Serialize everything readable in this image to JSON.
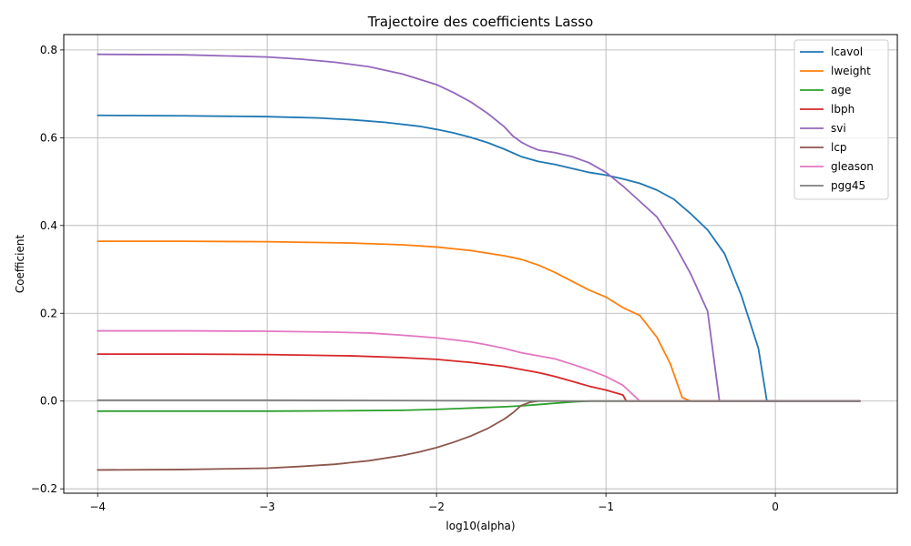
{
  "chart_data": {
    "type": "line",
    "title": "Trajectoire des coefficients Lasso",
    "xlabel": "log10(alpha)",
    "ylabel": "Coefficient",
    "xlim": [
      -4.2,
      0.72
    ],
    "ylim": [
      -0.21,
      0.835
    ],
    "xticks": [
      -4,
      -3,
      -2,
      -1,
      0
    ],
    "xtick_labels": [
      "−4",
      "−3",
      "−2",
      "−1",
      "0"
    ],
    "yticks": [
      -0.2,
      0.0,
      0.2,
      0.4,
      0.6,
      0.8
    ],
    "ytick_labels": [
      "−0.2",
      "0.0",
      "0.2",
      "0.4",
      "0.6",
      "0.8"
    ],
    "grid": true,
    "legend_position": "top-right",
    "series": [
      {
        "name": "lcavol",
        "color": "#1f77b4",
        "x": [
          -4,
          -3.5,
          -3,
          -2.7,
          -2.5,
          -2.3,
          -2.1,
          -2,
          -1.9,
          -1.8,
          -1.7,
          -1.6,
          -1.5,
          -1.4,
          -1.3,
          -1.2,
          -1.1,
          -1,
          -0.9,
          -0.8,
          -0.7,
          -0.6,
          -0.5,
          -0.4,
          -0.3,
          -0.2,
          -0.1,
          -0.05,
          0,
          0.5
        ],
        "y": [
          0.651,
          0.65,
          0.648,
          0.645,
          0.641,
          0.635,
          0.626,
          0.619,
          0.611,
          0.601,
          0.589,
          0.574,
          0.557,
          0.546,
          0.539,
          0.53,
          0.521,
          0.515,
          0.506,
          0.496,
          0.481,
          0.46,
          0.427,
          0.39,
          0.336,
          0.24,
          0.12,
          0.0,
          0.0,
          0.0
        ]
      },
      {
        "name": "lweight",
        "color": "#ff7f0e",
        "x": [
          -4,
          -3.5,
          -3,
          -2.5,
          -2.2,
          -2,
          -1.8,
          -1.6,
          -1.5,
          -1.4,
          -1.3,
          -1.2,
          -1.1,
          -1,
          -0.9,
          -0.8,
          -0.7,
          -0.62,
          -0.55,
          -0.5,
          0.5
        ],
        "y": [
          0.364,
          0.364,
          0.363,
          0.36,
          0.356,
          0.351,
          0.343,
          0.331,
          0.323,
          0.31,
          0.293,
          0.273,
          0.253,
          0.237,
          0.213,
          0.195,
          0.146,
          0.085,
          0.008,
          0.0,
          0.0
        ]
      },
      {
        "name": "age",
        "color": "#2ca02c",
        "x": [
          -4,
          -3.5,
          -3,
          -2.5,
          -2.2,
          -2,
          -1.8,
          -1.6,
          -1.5,
          -1.4,
          -1.3,
          -1.2,
          -1.1,
          0.5
        ],
        "y": [
          -0.023,
          -0.023,
          -0.023,
          -0.022,
          -0.021,
          -0.019,
          -0.016,
          -0.013,
          -0.011,
          -0.008,
          -0.005,
          -0.002,
          0.0,
          0.0
        ]
      },
      {
        "name": "lbph",
        "color": "#d62728",
        "x": [
          -4,
          -3.5,
          -3,
          -2.5,
          -2.2,
          -2,
          -1.8,
          -1.6,
          -1.5,
          -1.4,
          -1.3,
          -1.2,
          -1.1,
          -1,
          -0.9,
          -0.88,
          0.5
        ],
        "y": [
          0.107,
          0.107,
          0.106,
          0.103,
          0.099,
          0.095,
          0.088,
          0.079,
          0.072,
          0.065,
          0.056,
          0.045,
          0.034,
          0.025,
          0.014,
          0.0,
          0.0
        ]
      },
      {
        "name": "svi",
        "color": "#9467bd",
        "x": [
          -4,
          -3.5,
          -3,
          -2.8,
          -2.6,
          -2.4,
          -2.2,
          -2,
          -1.9,
          -1.8,
          -1.7,
          -1.6,
          -1.55,
          -1.5,
          -1.45,
          -1.4,
          -1.3,
          -1.2,
          -1.1,
          -1,
          -0.9,
          -0.8,
          -0.7,
          -0.6,
          -0.5,
          -0.4,
          -0.33,
          0.5
        ],
        "y": [
          0.79,
          0.789,
          0.784,
          0.779,
          0.772,
          0.762,
          0.745,
          0.721,
          0.703,
          0.682,
          0.656,
          0.625,
          0.604,
          0.59,
          0.58,
          0.572,
          0.566,
          0.557,
          0.543,
          0.521,
          0.49,
          0.455,
          0.42,
          0.36,
          0.29,
          0.205,
          0.0,
          0.0
        ]
      },
      {
        "name": "lcp",
        "color": "#8c564b",
        "x": [
          -4,
          -3.5,
          -3,
          -2.8,
          -2.6,
          -2.4,
          -2.2,
          -2.1,
          -2,
          -1.9,
          -1.8,
          -1.7,
          -1.6,
          -1.55,
          -1.5,
          -1.45,
          -1.4,
          0.5
        ],
        "y": [
          -0.157,
          -0.156,
          -0.153,
          -0.149,
          -0.144,
          -0.136,
          -0.124,
          -0.116,
          -0.106,
          -0.094,
          -0.08,
          -0.063,
          -0.041,
          -0.027,
          -0.01,
          -0.003,
          0.0,
          0.0
        ]
      },
      {
        "name": "gleason",
        "color": "#e377c2",
        "x": [
          -4,
          -3.5,
          -3,
          -2.6,
          -2.4,
          -2.2,
          -2,
          -1.8,
          -1.7,
          -1.6,
          -1.5,
          -1.4,
          -1.3,
          -1.2,
          -1.1,
          -1,
          -0.9,
          -0.8,
          0.5
        ],
        "y": [
          0.16,
          0.16,
          0.159,
          0.157,
          0.155,
          0.15,
          0.144,
          0.135,
          0.128,
          0.12,
          0.11,
          0.103,
          0.096,
          0.084,
          0.071,
          0.056,
          0.036,
          0.0,
          0.0
        ]
      },
      {
        "name": "pgg45",
        "color": "#7f7f7f",
        "x": [
          -4,
          -3,
          -2,
          -1.5,
          -1.2,
          0.5
        ],
        "y": [
          0.002,
          0.002,
          0.001,
          0.0005,
          0.0,
          0.0
        ]
      }
    ]
  }
}
